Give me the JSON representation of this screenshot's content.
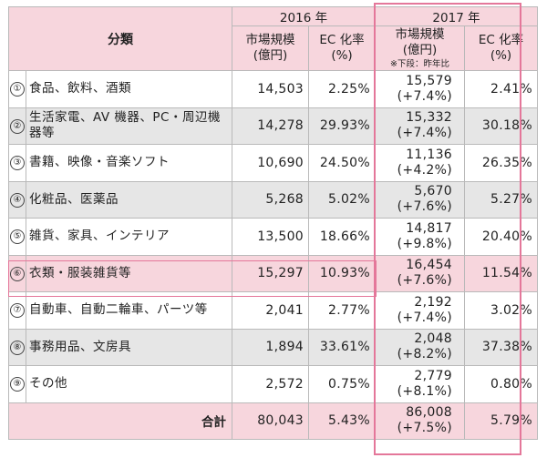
{
  "header": {
    "category": "分類",
    "year_2016": "2016 年",
    "year_2017": "2017 年",
    "market_size": "市場規模\n(億円)",
    "ec_rate": "EC 化率\n(%)",
    "market_size_2017": "市場規模\n(億円)",
    "market_note": "※下段：昨年比",
    "ec_rate_2017": "EC 化率\n(%)"
  },
  "rows": [
    {
      "no": "①",
      "name": "食品、飲料、酒類",
      "m2016": "14,503",
      "r2016": "2.25%",
      "m2017": "15,579",
      "yoy": "(+7.4%)",
      "r2017": "2.41%"
    },
    {
      "no": "②",
      "name": "生活家電、AV 機器、PC・周辺機器等",
      "m2016": "14,278",
      "r2016": "29.93%",
      "m2017": "15,332",
      "yoy": "(+7.4%)",
      "r2017": "30.18%"
    },
    {
      "no": "③",
      "name": "書籍、映像・音楽ソフト",
      "m2016": "10,690",
      "r2016": "24.50%",
      "m2017": "11,136",
      "yoy": "(+4.2%)",
      "r2017": "26.35%"
    },
    {
      "no": "④",
      "name": "化粧品、医薬品",
      "m2016": "5,268",
      "r2016": "5.02%",
      "m2017": "5,670",
      "yoy": "(+7.6%)",
      "r2017": "5.27%"
    },
    {
      "no": "⑤",
      "name": "雑貨、家具、インテリア",
      "m2016": "13,500",
      "r2016": "18.66%",
      "m2017": "14,817",
      "yoy": "(+9.8%)",
      "r2017": "20.40%"
    },
    {
      "no": "⑥",
      "name": "衣類・服装雑貨等",
      "m2016": "15,297",
      "r2016": "10.93%",
      "m2017": "16,454",
      "yoy": "(+7.6%)",
      "r2017": "11.54%"
    },
    {
      "no": "⑦",
      "name": "自動車、自動二輪車、パーツ等",
      "m2016": "2,041",
      "r2016": "2.77%",
      "m2017": "2,192",
      "yoy": "(+7.4%)",
      "r2017": "3.02%"
    },
    {
      "no": "⑧",
      "name": "事務用品、文房具",
      "m2016": "1,894",
      "r2016": "33.61%",
      "m2017": "2,048",
      "yoy": "(+8.2%)",
      "r2017": "37.38%"
    },
    {
      "no": "⑨",
      "name": "その他",
      "m2016": "2,572",
      "r2016": "0.75%",
      "m2017": "2,779",
      "yoy": "(+8.1%)",
      "r2017": "0.80%"
    }
  ],
  "total": {
    "label": "合計",
    "m2016": "80,043",
    "r2016": "5.43%",
    "m2017": "86,008",
    "yoy": "(+7.5%)",
    "r2017": "5.79%"
  },
  "colors": {
    "header_bg": "#f7d6dd",
    "shade_bg": "#e6e6e6",
    "highlight_border": "#e4779a"
  }
}
